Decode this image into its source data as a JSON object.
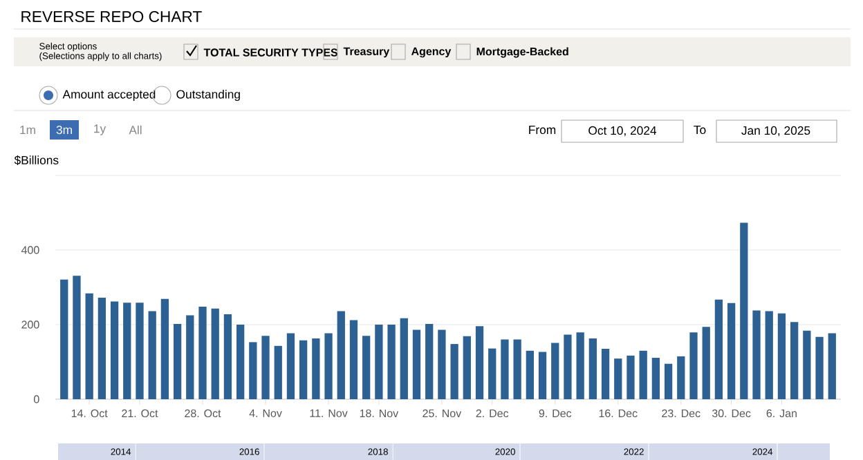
{
  "chart_data": {
    "type": "bar",
    "title": "REVERSE REPO CHART",
    "ylabel": "$Billions",
    "categories": [
      null,
      null,
      "14. Oct",
      null,
      null,
      null,
      "21. Oct",
      null,
      null,
      null,
      null,
      "28. Oct",
      null,
      null,
      null,
      null,
      "4. Nov",
      null,
      null,
      null,
      null,
      "11. Nov",
      null,
      null,
      null,
      "18. Nov",
      null,
      null,
      null,
      null,
      "25. Nov",
      null,
      null,
      null,
      "2. Dec",
      null,
      null,
      null,
      null,
      "9. Dec",
      null,
      null,
      null,
      null,
      "16. Dec",
      null,
      null,
      null,
      null,
      "23. Dec",
      null,
      null,
      null,
      "30. Dec",
      null,
      null,
      null,
      "6. Jan",
      null,
      null,
      null,
      null
    ],
    "values": [
      321,
      331,
      284,
      272,
      262,
      259,
      259,
      236,
      269,
      202,
      225,
      248,
      243,
      228,
      200,
      153,
      170,
      143,
      177,
      158,
      163,
      177,
      236,
      212,
      170,
      200,
      200,
      217,
      186,
      202,
      186,
      148,
      169,
      196,
      136,
      160,
      160,
      130,
      127,
      151,
      173,
      179,
      163,
      135,
      109,
      117,
      130,
      111,
      95,
      115,
      179,
      194,
      267,
      258,
      473,
      238,
      236,
      230,
      207,
      184,
      167,
      177
    ],
    "color": "#2d6193",
    "ylim": [
      0,
      600
    ],
    "yticks": [
      0,
      200,
      400,
      {
        "value": 600,
        "label": null
      }
    ],
    "grid": "y",
    "annotations": [
      "Select options",
      "(Selections apply to all charts)",
      "TOTAL SECURITY TYPES",
      "Treasury",
      "Agency",
      "Mortgage-Backed",
      "Amount accepted",
      "Outstanding",
      "1m",
      "3m",
      "1y",
      "All",
      "From",
      "Oct 10, 2024",
      "To",
      "Jan 10, 2025",
      "2014",
      "2016",
      "2018",
      "2020",
      "2022",
      "2024"
    ]
  }
}
